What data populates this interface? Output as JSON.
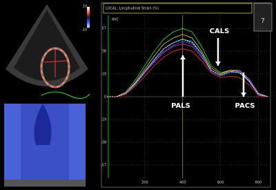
{
  "chart_data": {
    "type": "line",
    "title": "LOCAL: Longitudinal Strain (%)",
    "x": [
      0,
      50,
      100,
      150,
      200,
      250,
      300,
      350,
      400,
      450,
      500,
      550,
      600,
      650,
      700,
      750,
      800,
      850
    ],
    "series": [
      {
        "color": "#2ee82e",
        "values": [
          0,
          0,
          4,
          14,
          26,
          38,
          48,
          54,
          57,
          54,
          42,
          26,
          20,
          22,
          21,
          13,
          2,
          0
        ]
      },
      {
        "color": "#e8e82e",
        "values": [
          0,
          0,
          3,
          12,
          23,
          34,
          44,
          49,
          52,
          49,
          38,
          24,
          19,
          22,
          22,
          14,
          3,
          0
        ]
      },
      {
        "color": "#2ee8e8",
        "values": [
          0,
          0,
          3,
          11,
          21,
          31,
          40,
          45,
          48,
          46,
          36,
          22,
          18,
          21,
          20,
          13,
          2,
          0
        ]
      },
      {
        "color": "#3a5cff",
        "values": [
          0,
          0,
          2,
          10,
          20,
          30,
          38,
          43,
          46,
          44,
          34,
          21,
          17,
          20,
          21,
          14,
          3,
          0
        ]
      },
      {
        "color": "#e82ee8",
        "values": [
          0,
          0,
          3,
          11,
          20,
          29,
          37,
          42,
          44,
          42,
          33,
          22,
          18,
          21,
          22,
          15,
          3,
          0
        ]
      },
      {
        "color": "#ff2e2e",
        "values": [
          0,
          0,
          2,
          9,
          17,
          26,
          33,
          38,
          40,
          38,
          30,
          20,
          16,
          17,
          16,
          10,
          1,
          0
        ]
      },
      {
        "color": "#ffffff",
        "values": [
          0,
          0,
          3,
          11,
          21,
          31,
          40,
          45,
          48,
          45,
          36,
          22,
          18,
          21,
          20,
          13,
          2,
          0
        ]
      }
    ],
    "xlim": [
      0,
      860
    ],
    "xticks": [
      200,
      400,
      600,
      800
    ],
    "ylim": [
      -68,
      68
    ],
    "yticks": [
      57,
      38,
      19,
      0,
      -19,
      -38,
      -57
    ],
    "grid": true,
    "annotations": [
      "AVC",
      "PALS",
      "CALS",
      "PACS"
    ]
  },
  "ui": {
    "colorbar_labels": [
      "10",
      "-10"
    ],
    "help": "?"
  }
}
